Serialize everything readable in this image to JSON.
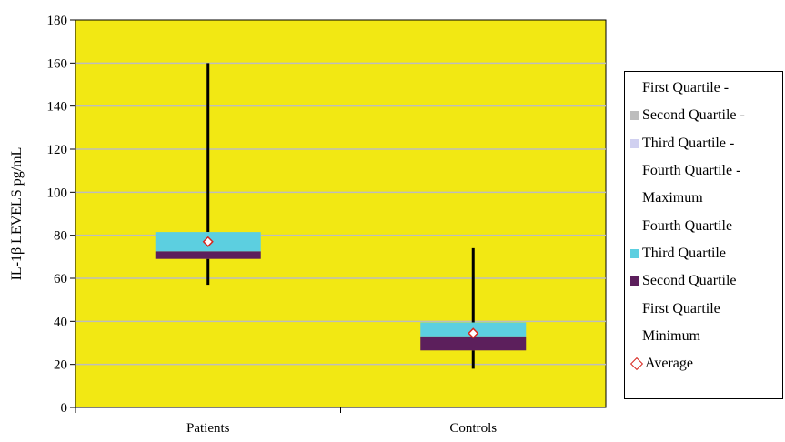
{
  "chart_data": {
    "type": "box",
    "ylabel": "IL-1β LEVELS pg/mL",
    "ylim": [
      0,
      180
    ],
    "yticks": [
      0,
      20,
      40,
      60,
      80,
      100,
      120,
      140,
      160,
      180
    ],
    "grid": true,
    "plot_background": "#f2e813",
    "categories": [
      "Patients",
      "Controls"
    ],
    "series": [
      {
        "name": "Patients",
        "min": 57,
        "q1": 69,
        "median": 72.5,
        "q3": 81.5,
        "max": 160,
        "average": 77
      },
      {
        "name": "Controls",
        "min": 18,
        "q1": 26.5,
        "median": 33,
        "q3": 39.5,
        "max": 74,
        "average": 34.5
      }
    ],
    "colors": {
      "third_quartile": "#5ccfe0",
      "second_quartile": "#5c1f5c",
      "whisker": "#000000",
      "average_marker": "#d7261e",
      "gridline": "#bdbdbd",
      "legend_second_quartile_minus": "#bdbdbd",
      "legend_third_quartile_minus": "#d0d0f0"
    },
    "legend_placement": "right",
    "legend": [
      {
        "label": "First Quartile -",
        "marker": "none"
      },
      {
        "label": "Second Quartile -",
        "marker": "square",
        "color": "#bdbdbd"
      },
      {
        "label": "Third Quartile -",
        "marker": "square",
        "color": "#d0d0f0"
      },
      {
        "label": "Fourth Quartile -",
        "marker": "none"
      },
      {
        "label": "Maximum",
        "marker": "none"
      },
      {
        "label": "Fourth Quartile",
        "marker": "none"
      },
      {
        "label": "Third Quartile",
        "marker": "square",
        "color": "#5ccfe0"
      },
      {
        "label": "Second Quartile",
        "marker": "square",
        "color": "#5c1f5c"
      },
      {
        "label": "First Quartile",
        "marker": "none"
      },
      {
        "label": "Minimum",
        "marker": "none"
      },
      {
        "label": "Average",
        "marker": "diamond",
        "color": "#d7261e"
      }
    ]
  }
}
